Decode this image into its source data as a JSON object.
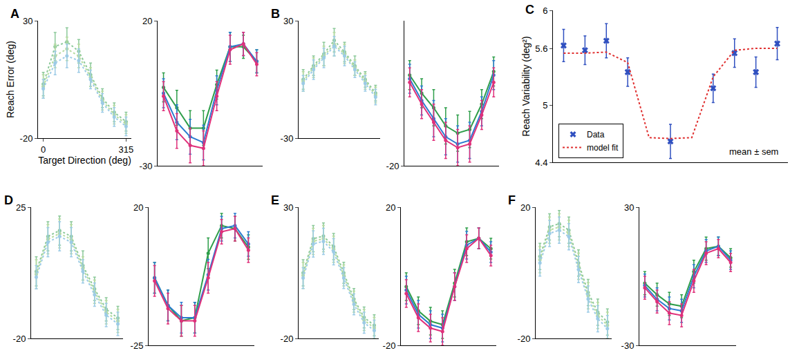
{
  "chart_data": [
    {
      "type": "line",
      "title": "A",
      "x_label": "Target Direction (deg)",
      "y_label": "Reach Error (deg)",
      "x": [
        0,
        45,
        90,
        135,
        180,
        225,
        270,
        315
      ],
      "xlim": [
        -20,
        335
      ],
      "ylim": [
        -20,
        30
      ],
      "xticks": [
        0,
        315
      ],
      "yticks": [
        -20,
        30
      ],
      "tick_labels": true,
      "grid": false,
      "series": [
        {
          "color": "#8cc99a",
          "line_style": "dotted",
          "marker": "circle",
          "values": [
            3,
            19,
            21,
            17,
            7,
            -3,
            -9,
            -13
          ],
          "errors": [
            5,
            6,
            6,
            5,
            5,
            4,
            4,
            4
          ]
        },
        {
          "color": "#b5dba0",
          "line_style": "dotted",
          "marker": "circle",
          "values": [
            2,
            15,
            18,
            15,
            6,
            -4,
            -10,
            -14
          ],
          "errors": [
            5,
            5,
            5,
            5,
            4,
            4,
            4,
            4
          ]
        },
        {
          "color": "#9ccbe6",
          "line_style": "dotted",
          "marker": "circle",
          "values": [
            1,
            12,
            15,
            13,
            5,
            -5,
            -11,
            -15
          ],
          "errors": [
            4,
            5,
            5,
            5,
            4,
            4,
            4,
            4
          ]
        }
      ]
    },
    {
      "type": "line",
      "x": [
        0,
        45,
        90,
        135,
        180,
        225,
        270,
        315
      ],
      "xlim": [
        -20,
        335
      ],
      "ylim": [
        -30,
        20
      ],
      "xticks": [],
      "yticks": [
        -30,
        20
      ],
      "tick_labels": "y",
      "grid": false,
      "series": [
        {
          "color": "#2e9e4a",
          "line_style": "solid",
          "marker": "circle",
          "values": [
            -3,
            -10,
            -17,
            -17,
            -2,
            11,
            11,
            6
          ],
          "errors": [
            5,
            6,
            6,
            6,
            5,
            5,
            4,
            4
          ]
        },
        {
          "color": "#2b7bd0",
          "line_style": "solid",
          "marker": "circle",
          "values": [
            -5,
            -15,
            -20,
            -22,
            -4,
            11,
            12,
            6
          ],
          "errors": [
            5,
            6,
            6,
            6,
            5,
            5,
            4,
            4
          ]
        },
        {
          "color": "#e0307a",
          "line_style": "solid",
          "marker": "circle",
          "values": [
            -6,
            -18,
            -23,
            -24,
            -6,
            10,
            12,
            5
          ],
          "errors": [
            5,
            6,
            6,
            6,
            5,
            5,
            4,
            4
          ]
        }
      ]
    },
    {
      "type": "line",
      "title": "B",
      "x": [
        0,
        45,
        90,
        135,
        180,
        225,
        270,
        315
      ],
      "xlim": [
        -20,
        335
      ],
      "ylim": [
        -30,
        30
      ],
      "xticks": [],
      "yticks": [
        -30,
        30
      ],
      "tick_labels": "y",
      "grid": false,
      "series": [
        {
          "color": "#8cc99a",
          "line_style": "dotted",
          "marker": "circle",
          "values": [
            0,
            7,
            13,
            20,
            14,
            7,
            0,
            -7
          ],
          "errors": [
            5,
            5,
            6,
            6,
            5,
            5,
            4,
            4
          ]
        },
        {
          "color": "#b5dba0",
          "line_style": "dotted",
          "marker": "circle",
          "values": [
            -1,
            6,
            12,
            18,
            13,
            6,
            -1,
            -8
          ],
          "errors": [
            5,
            5,
            5,
            6,
            5,
            4,
            4,
            4
          ]
        },
        {
          "color": "#9ccbe6",
          "line_style": "dotted",
          "marker": "circle",
          "values": [
            -2,
            5,
            11,
            17,
            12,
            5,
            -2,
            -9
          ],
          "errors": [
            4,
            5,
            5,
            5,
            5,
            4,
            4,
            4
          ]
        }
      ]
    },
    {
      "type": "line",
      "x": [
        0,
        45,
        90,
        135,
        180,
        225,
        270,
        315
      ],
      "xlim": [
        -20,
        335
      ],
      "ylim": [
        -20,
        20
      ],
      "xticks": [],
      "yticks": [
        -20
      ],
      "tick_labels": "y",
      "grid": false,
      "series": [
        {
          "color": "#2e9e4a",
          "line_style": "solid",
          "marker": "circle",
          "values": [
            5,
            0,
            -4,
            -9,
            -11,
            -10,
            -3,
            6
          ],
          "errors": [
            4,
            4,
            5,
            5,
            5,
            5,
            4,
            4
          ]
        },
        {
          "color": "#2b7bd0",
          "line_style": "solid",
          "marker": "circle",
          "values": [
            4,
            -2,
            -7,
            -12,
            -14,
            -13,
            -5,
            5
          ],
          "errors": [
            4,
            4,
            5,
            5,
            5,
            5,
            4,
            4
          ]
        },
        {
          "color": "#e0307a",
          "line_style": "solid",
          "marker": "circle",
          "values": [
            3,
            -3,
            -8,
            -13,
            -15,
            -14,
            -6,
            3
          ],
          "errors": [
            4,
            4,
            5,
            5,
            5,
            5,
            4,
            4
          ]
        }
      ]
    },
    {
      "type": "line",
      "title": "C",
      "y_label": "Reach Variability (deg²)",
      "x": [
        1,
        2,
        3,
        4,
        5,
        6,
        7,
        8,
        9,
        10,
        11
      ],
      "xlim": [
        0.5,
        11.5
      ],
      "ylim": [
        4.4,
        6
      ],
      "xticks": [],
      "yticks": [
        4.4,
        5,
        5.6,
        6
      ],
      "tick_labels": "y",
      "grid": false,
      "legend": "lower left",
      "annotations": [
        "mean ± sem"
      ],
      "series": [
        {
          "name": "Data",
          "color": "#3050c0",
          "line_style": "none",
          "marker": "x",
          "values": [
            5.63,
            5.58,
            5.68,
            5.35,
            null,
            4.62,
            null,
            5.18,
            5.55,
            5.35,
            5.65
          ],
          "errors": [
            0.17,
            0.15,
            0.18,
            0.15,
            null,
            0.18,
            null,
            0.15,
            0.15,
            0.16,
            0.17
          ]
        },
        {
          "name": "model fit",
          "color": "#e03030",
          "line_style": "dotted",
          "marker": "none",
          "values": [
            5.55,
            5.55,
            5.56,
            5.45,
            4.66,
            4.65,
            4.66,
            5.3,
            5.58,
            5.6,
            5.6
          ]
        }
      ]
    },
    {
      "type": "line",
      "title": "D",
      "x": [
        0,
        45,
        90,
        135,
        180,
        225,
        270,
        315
      ],
      "xlim": [
        -20,
        335
      ],
      "ylim": [
        -20,
        25
      ],
      "xticks": [],
      "yticks": [
        -20,
        25
      ],
      "tick_labels": "y",
      "grid": false,
      "series": [
        {
          "color": "#8cc99a",
          "line_style": "dotted",
          "marker": "circle",
          "values": [
            3,
            15,
            17,
            15,
            5,
            -3,
            -10,
            -13
          ],
          "errors": [
            5,
            5,
            5,
            5,
            5,
            4,
            4,
            4
          ]
        },
        {
          "color": "#b5dba0",
          "line_style": "dotted",
          "marker": "circle",
          "values": [
            2,
            14,
            16,
            14,
            4,
            -4,
            -11,
            -14
          ],
          "errors": [
            5,
            5,
            5,
            5,
            4,
            4,
            4,
            4
          ]
        },
        {
          "color": "#9ccbe6",
          "line_style": "dotted",
          "marker": "circle",
          "values": [
            1,
            13,
            15,
            13,
            3,
            -5,
            -12,
            -15
          ],
          "errors": [
            4,
            5,
            5,
            5,
            4,
            4,
            4,
            4
          ]
        }
      ]
    },
    {
      "type": "line",
      "x": [
        0,
        45,
        90,
        135,
        180,
        225,
        270,
        315
      ],
      "xlim": [
        -20,
        335
      ],
      "ylim": [
        -25,
        20
      ],
      "xticks": [],
      "yticks": [
        -25,
        20
      ],
      "tick_labels": "y",
      "grid": false,
      "series": [
        {
          "color": "#2e9e4a",
          "line_style": "solid",
          "marker": "circle",
          "values": [
            -3,
            -12,
            -17,
            -16,
            5,
            14,
            13,
            7
          ],
          "errors": [
            5,
            5,
            5,
            5,
            5,
            4,
            4,
            4
          ]
        },
        {
          "color": "#2b7bd0",
          "line_style": "solid",
          "marker": "circle",
          "values": [
            -3,
            -12,
            -16,
            -16,
            -2,
            13,
            14,
            8
          ],
          "errors": [
            5,
            5,
            5,
            5,
            5,
            4,
            4,
            4
          ]
        },
        {
          "color": "#e0307a",
          "line_style": "solid",
          "marker": "circle",
          "values": [
            -4,
            -13,
            -17,
            -17,
            -3,
            12,
            13,
            6
          ],
          "errors": [
            5,
            5,
            5,
            5,
            5,
            4,
            4,
            4
          ]
        }
      ]
    },
    {
      "type": "line",
      "title": "E",
      "x": [
        0,
        45,
        90,
        135,
        180,
        225,
        270,
        315
      ],
      "xlim": [
        -20,
        335
      ],
      "ylim": [
        -20,
        30
      ],
      "xticks": [],
      "yticks": [
        -20,
        30
      ],
      "tick_labels": "y",
      "grid": false,
      "series": [
        {
          "color": "#8cc99a",
          "line_style": "dotted",
          "marker": "circle",
          "values": [
            5,
            18,
            19,
            15,
            5,
            -5,
            -12,
            -15
          ],
          "errors": [
            5,
            5,
            5,
            5,
            4,
            4,
            4,
            4
          ]
        },
        {
          "color": "#b5dba0",
          "line_style": "dotted",
          "marker": "circle",
          "values": [
            4,
            17,
            18,
            14,
            4,
            -6,
            -13,
            -16
          ],
          "errors": [
            5,
            5,
            5,
            5,
            4,
            4,
            4,
            4
          ]
        },
        {
          "color": "#9ccbe6",
          "line_style": "dotted",
          "marker": "circle",
          "values": [
            3,
            16,
            17,
            13,
            3,
            -7,
            -14,
            -17
          ],
          "errors": [
            4,
            5,
            5,
            5,
            4,
            4,
            4,
            4
          ]
        }
      ]
    },
    {
      "type": "line",
      "x": [
        0,
        45,
        90,
        135,
        180,
        225,
        270,
        315
      ],
      "xlim": [
        -20,
        335
      ],
      "ylim": [
        -20,
        20
      ],
      "xticks": [],
      "yticks": [
        -20,
        20
      ],
      "tick_labels": "y",
      "grid": false,
      "series": [
        {
          "color": "#2e9e4a",
          "line_style": "solid",
          "marker": "circle",
          "values": [
            -3,
            -10,
            -13,
            -14,
            -2,
            10,
            11,
            8
          ],
          "errors": [
            4,
            4,
            4,
            4,
            4,
            4,
            3,
            3
          ]
        },
        {
          "color": "#2b7bd0",
          "line_style": "solid",
          "marker": "circle",
          "values": [
            -4,
            -11,
            -14,
            -15,
            -3,
            9,
            11,
            7
          ],
          "errors": [
            4,
            4,
            4,
            4,
            4,
            4,
            3,
            3
          ]
        },
        {
          "color": "#e0307a",
          "line_style": "solid",
          "marker": "circle",
          "values": [
            -5,
            -12,
            -15,
            -16,
            -3,
            8,
            11,
            6
          ],
          "errors": [
            4,
            4,
            4,
            4,
            4,
            4,
            3,
            3
          ]
        }
      ]
    },
    {
      "type": "line",
      "title": "F",
      "x": [
        0,
        45,
        90,
        135,
        180,
        225,
        270,
        315
      ],
      "xlim": [
        -20,
        335
      ],
      "ylim": [
        -20,
        20
      ],
      "xticks": [],
      "yticks": [
        -20,
        20
      ],
      "tick_labels": "y",
      "grid": false,
      "series": [
        {
          "color": "#8cc99a",
          "line_style": "dotted",
          "marker": "circle",
          "values": [
            5,
            14,
            15,
            13,
            3,
            -6,
            -12,
            -15
          ],
          "errors": [
            4,
            4,
            4,
            4,
            4,
            4,
            4,
            4
          ]
        },
        {
          "color": "#b5dba0",
          "line_style": "dotted",
          "marker": "circle",
          "values": [
            4,
            13,
            14,
            12,
            2,
            -7,
            -13,
            -16
          ],
          "errors": [
            4,
            4,
            4,
            4,
            4,
            4,
            4,
            4
          ]
        },
        {
          "color": "#9ccbe6",
          "line_style": "dotted",
          "marker": "circle",
          "values": [
            3,
            12,
            13,
            11,
            1,
            -8,
            -14,
            -17
          ],
          "errors": [
            4,
            4,
            4,
            4,
            4,
            4,
            4,
            4
          ]
        }
      ]
    },
    {
      "type": "line",
      "x": [
        0,
        45,
        90,
        135,
        180,
        225,
        270,
        315
      ],
      "xlim": [
        -20,
        335
      ],
      "ylim": [
        -30,
        30
      ],
      "xticks": [],
      "yticks": [
        -30,
        30
      ],
      "tick_labels": "y",
      "grid": false,
      "series": [
        {
          "color": "#2e9e4a",
          "line_style": "solid",
          "marker": "circle",
          "values": [
            -3,
            -8,
            -12,
            -13,
            2,
            12,
            13,
            8
          ],
          "errors": [
            5,
            5,
            5,
            5,
            5,
            5,
            4,
            4
          ]
        },
        {
          "color": "#2b7bd0",
          "line_style": "solid",
          "marker": "circle",
          "values": [
            -4,
            -10,
            -14,
            -15,
            0,
            11,
            13,
            7
          ],
          "errors": [
            5,
            5,
            5,
            5,
            5,
            5,
            4,
            4
          ]
        },
        {
          "color": "#e0307a",
          "line_style": "solid",
          "marker": "circle",
          "values": [
            -5,
            -11,
            -16,
            -17,
            -2,
            10,
            12,
            6
          ],
          "errors": [
            5,
            5,
            5,
            5,
            5,
            5,
            4,
            4
          ]
        }
      ]
    }
  ]
}
